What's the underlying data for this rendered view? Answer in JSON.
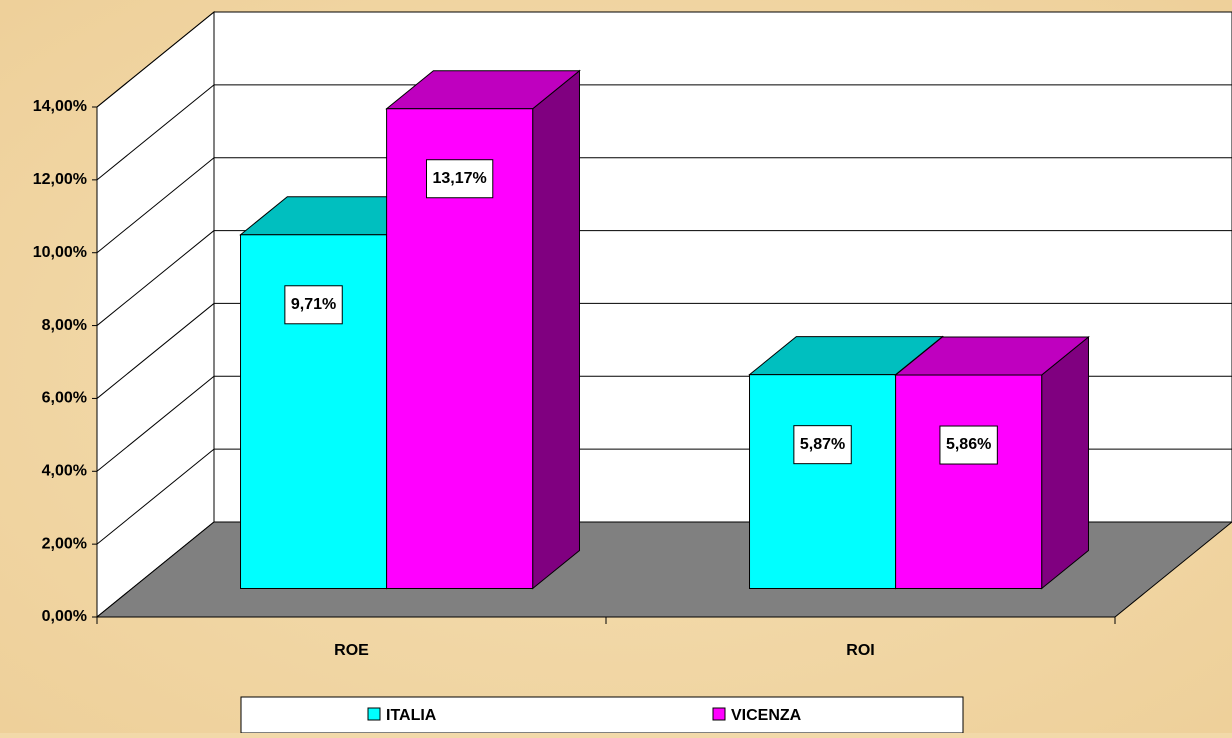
{
  "chart_data": {
    "type": "bar3d",
    "categories": [
      "ROE",
      "ROI"
    ],
    "series": [
      {
        "name": "ITALIA",
        "color": "#00ffff",
        "values": [
          9.71,
          5.87
        ],
        "value_labels": [
          "9,71%",
          "5,87%"
        ]
      },
      {
        "name": "VICENZA",
        "color": "#ff00ff",
        "values": [
          13.17,
          5.86
        ],
        "value_labels": [
          "13,17%",
          "5,86%"
        ]
      }
    ],
    "ylim": [
      0,
      14
    ],
    "yticks": [
      {
        "value": 0,
        "label": "0,00%"
      },
      {
        "value": 2,
        "label": "2,00%"
      },
      {
        "value": 4,
        "label": "4,00%"
      },
      {
        "value": 6,
        "label": "6,00%"
      },
      {
        "value": 8,
        "label": "8,00%"
      },
      {
        "value": 10,
        "label": "10,00%"
      },
      {
        "value": 12,
        "label": "12,00%"
      },
      {
        "value": 14,
        "label": "14,00%"
      }
    ],
    "grid": true,
    "legend": "bottom"
  }
}
